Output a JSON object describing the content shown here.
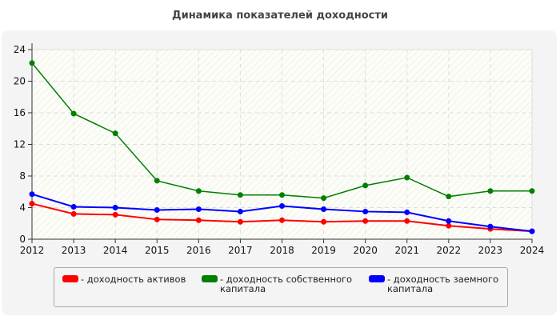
{
  "chart_data": {
    "type": "line",
    "title": "Динамика показателей доходности",
    "x": [
      2012,
      2013,
      2014,
      2015,
      2016,
      2017,
      2018,
      2019,
      2020,
      2021,
      2022,
      2023,
      2024
    ],
    "ylim": [
      0,
      24
    ],
    "yticks": [
      0,
      4,
      8,
      12,
      16,
      20,
      24
    ],
    "grid": true,
    "legend_position": "bottom",
    "series": [
      {
        "name": "- доходность активов",
        "color": "#ff0000",
        "values": [
          4.5,
          3.2,
          3.1,
          2.5,
          2.4,
          2.2,
          2.4,
          2.2,
          2.3,
          2.3,
          1.7,
          1.3,
          1.0
        ]
      },
      {
        "name": "- доходность собственного капитала",
        "color": "#008000",
        "values": [
          22.3,
          15.9,
          13.4,
          7.4,
          6.1,
          5.6,
          5.6,
          5.2,
          6.8,
          7.8,
          5.4,
          6.1,
          6.1
        ]
      },
      {
        "name": "- доходность заемного капитала",
        "color": "#0000ff",
        "values": [
          5.7,
          4.1,
          4.0,
          3.7,
          3.8,
          3.5,
          4.2,
          3.8,
          3.5,
          3.4,
          2.3,
          1.6,
          1.0
        ]
      }
    ]
  }
}
